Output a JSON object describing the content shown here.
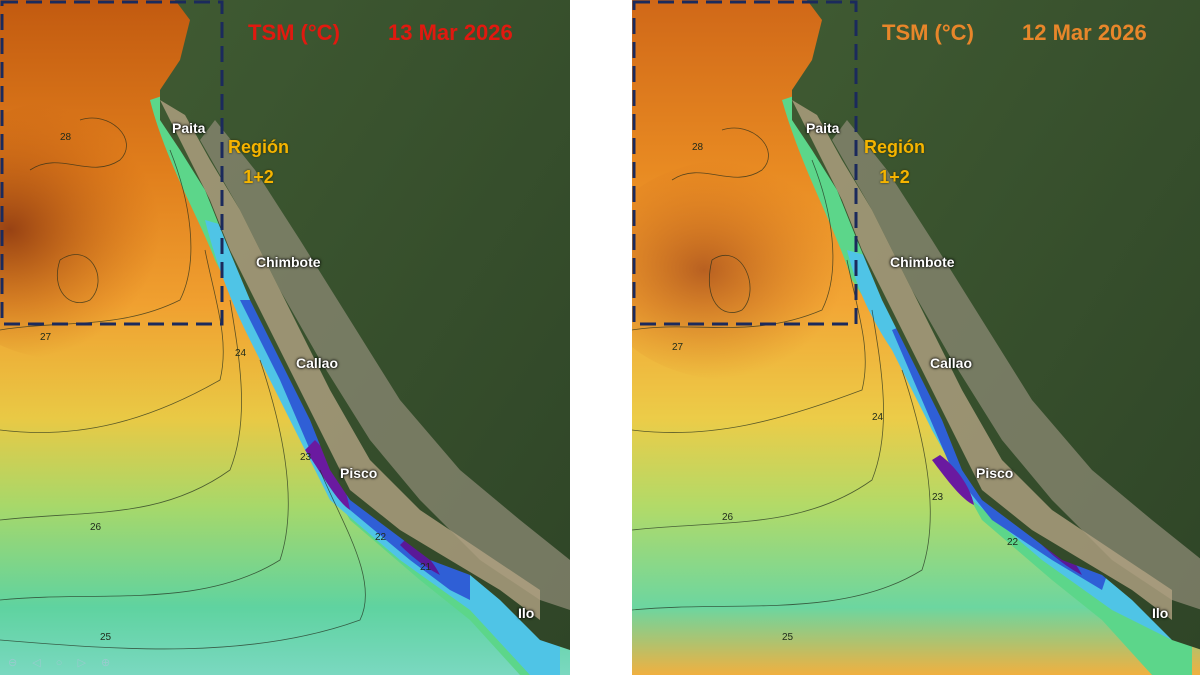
{
  "colors": {
    "title_left": "#e1190f",
    "title_right": "#e8862a",
    "region_label": "#f5b400",
    "city_label": "#ffffff",
    "box_dash": "#1b2a5c"
  },
  "panels": [
    {
      "title_var": "TSM (°C)",
      "date": "13 Mar 2026",
      "region_label_line1": "Región",
      "region_label_line2": "1+2",
      "cities": [
        "Paita",
        "Chimbote",
        "Callao",
        "Pisco",
        "Ilo"
      ],
      "contour_labels": [
        "28",
        "27",
        "26",
        "25",
        "24",
        "23",
        "22",
        "21"
      ]
    },
    {
      "title_var": "TSM (°C)",
      "date": "12 Mar 2026",
      "region_label_line1": "Región",
      "region_label_line2": "1+2",
      "cities": [
        "Paita",
        "Chimbote",
        "Callao",
        "Pisco",
        "Ilo"
      ],
      "contour_labels": [
        "28",
        "27",
        "26",
        "25",
        "24",
        "23",
        "22"
      ]
    }
  ]
}
